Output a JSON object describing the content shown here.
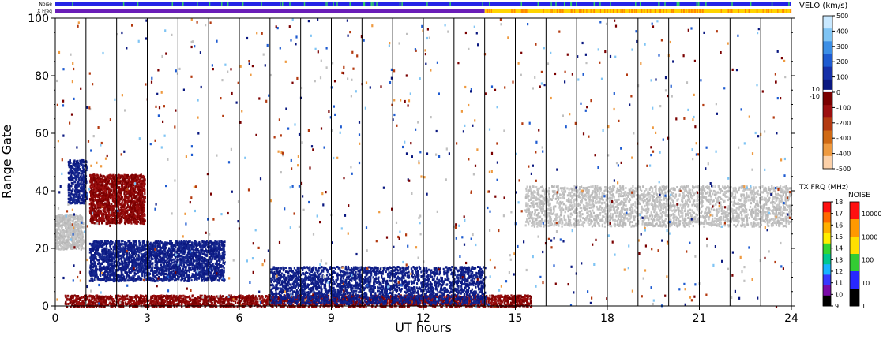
{
  "chart_data": {
    "type": "heatmap",
    "xlabel": "UT hours",
    "ylabel": "Range Gate",
    "xlim": [
      0,
      24
    ],
    "ylim": [
      0,
      100
    ],
    "xticks": [
      0,
      3,
      6,
      9,
      12,
      15,
      18,
      21,
      24
    ],
    "yticks": [
      0,
      20,
      40,
      60,
      80,
      100
    ],
    "hour_lines": [
      1,
      2,
      3,
      4,
      5,
      6,
      7,
      8,
      9,
      10,
      11,
      12,
      13,
      14,
      15,
      16,
      17,
      18,
      19,
      20,
      21,
      22,
      23
    ],
    "top_bars": {
      "noise_label": "Noise",
      "txfreq_label": "TX Freq",
      "txfreq_switch_hour": 14,
      "txfreq_before_color": "#6a1db8",
      "txfreq_after_color": "#ffd400"
    },
    "velocity_scale": {
      "title": "VELO (km/s)",
      "ticks": [
        "500",
        "400",
        "300",
        "200",
        "100",
        "0",
        "-100",
        "-200",
        "-300",
        "-400",
        "-500"
      ],
      "inner_labels": [
        "10",
        "-10"
      ],
      "colors": [
        "#c8e8ff",
        "#7fc4f4",
        "#3c8fe6",
        "#1e5bd0",
        "#1630a8",
        "#0a1880",
        "#7a0000",
        "#9c0f0f",
        "#b33a10",
        "#d06a14",
        "#ee9a40",
        "#fbd0a8"
      ]
    },
    "txfreq_scale": {
      "title": "TX FRQ (MHz)",
      "ticks": [
        "18",
        "17",
        "16",
        "15",
        "14",
        "13",
        "12",
        "11",
        "10",
        "9"
      ],
      "colors": [
        "#ff1010",
        "#ff6a00",
        "#ffb000",
        "#ffee00",
        "#33d633",
        "#00c890",
        "#18b4ff",
        "#3838ff",
        "#7a0aa8",
        "#000000"
      ]
    },
    "noise_scale": {
      "title": "NOISE",
      "ticks": [
        "10000",
        "1000",
        "100",
        "10",
        "1"
      ],
      "colors": [
        "#ff1010",
        "#ff9900",
        "#ffe000",
        "#33cc33",
        "#2828ff",
        "#000000"
      ]
    },
    "regions": [
      {
        "name": "ground-scatter-early",
        "x": [
          0,
          0.9
        ],
        "y": [
          20,
          32
        ],
        "kind": "grey"
      },
      {
        "name": "ground-scatter-late",
        "x": [
          15.3,
          24
        ],
        "y": [
          28,
          42
        ],
        "kind": "grey"
      },
      {
        "name": "ionospheric-low-velocity",
        "x": [
          1.1,
          5.5
        ],
        "y": [
          9,
          23
        ],
        "kind": "navy"
      },
      {
        "name": "low-range-negative",
        "x": [
          0.3,
          15.5
        ],
        "y": [
          0,
          4
        ],
        "kind": "red"
      },
      {
        "name": "low-range-positive",
        "x": [
          7,
          14
        ],
        "y": [
          1,
          14
        ],
        "kind": "navy"
      },
      {
        "name": "early-high-blob",
        "x": [
          0.4,
          1.0
        ],
        "y": [
          36,
          51
        ],
        "kind": "navy"
      },
      {
        "name": "early-mixed-patch",
        "x": [
          1.1,
          2.9
        ],
        "y": [
          29,
          46
        ],
        "kind": "red"
      }
    ]
  }
}
